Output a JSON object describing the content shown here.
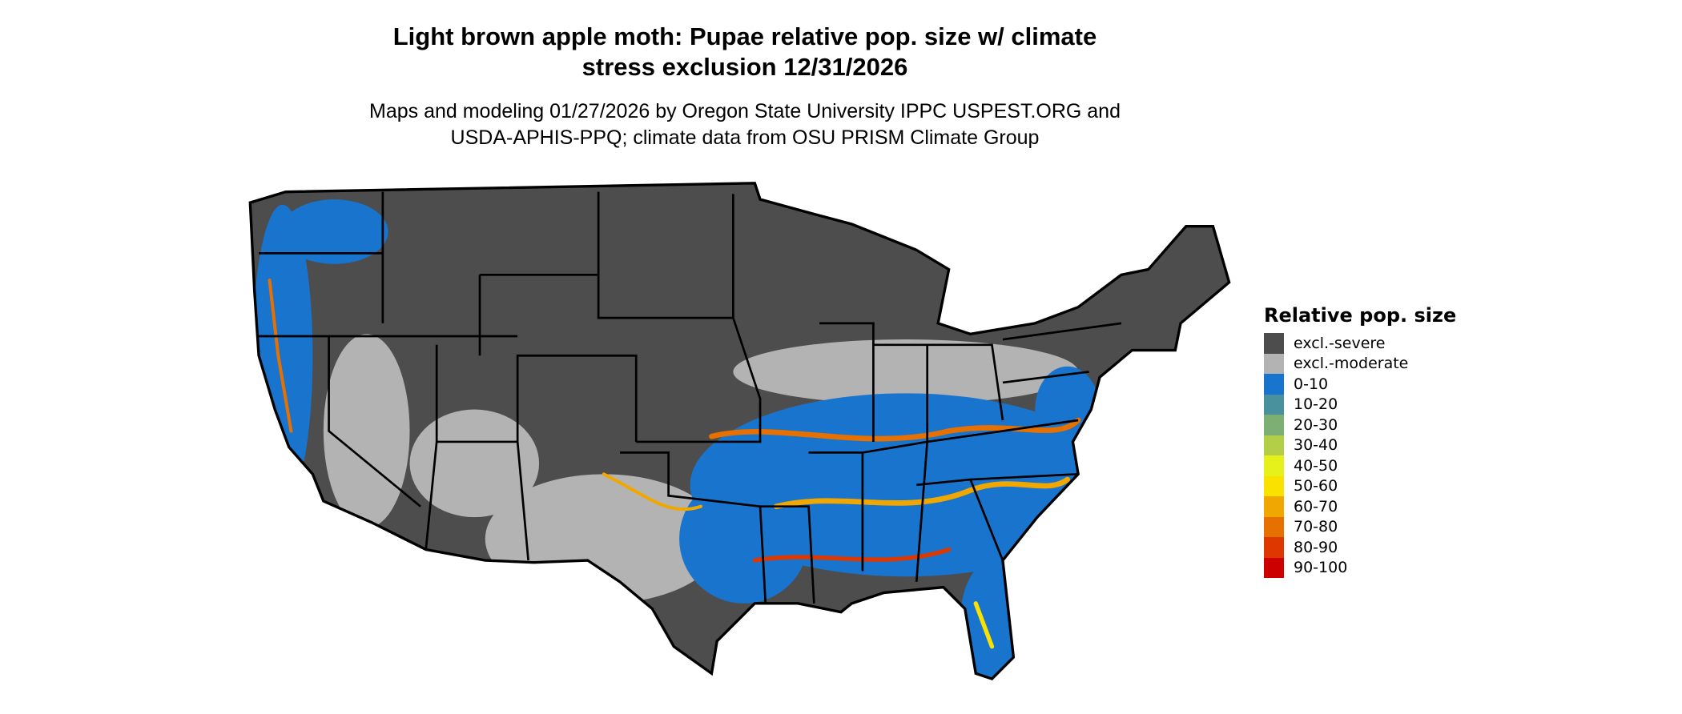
{
  "title": {
    "line1": "Light brown apple moth: Pupae relative pop. size w/ climate",
    "line2": "stress exclusion 12/31/2026"
  },
  "subtitle": {
    "line1": "Maps and modeling 01/27/2026 by Oregon State University IPPC USPEST.ORG and",
    "line2": "USDA-APHIS-PPQ; climate data from OSU PRISM Climate Group"
  },
  "map": {
    "region": "Contiguous United States",
    "colors": {
      "severe": "#4d4d4d",
      "moderate": "#b3b3b3",
      "low": "#1874cd",
      "border": "#000000"
    }
  },
  "legend": {
    "title": "Relative pop. size",
    "items": [
      {
        "label": "excl.-severe",
        "color": "#4d4d4d"
      },
      {
        "label": "excl.-moderate",
        "color": "#b3b3b3"
      },
      {
        "label": "0-10",
        "color": "#1874cd"
      },
      {
        "label": "10-20",
        "color": "#4a919e"
      },
      {
        "label": "20-30",
        "color": "#7daf75"
      },
      {
        "label": "30-40",
        "color": "#b3cf47"
      },
      {
        "label": "40-50",
        "color": "#e6f01a"
      },
      {
        "label": "50-60",
        "color": "#f9e100"
      },
      {
        "label": "60-70",
        "color": "#f0a800"
      },
      {
        "label": "70-80",
        "color": "#e67000"
      },
      {
        "label": "80-90",
        "color": "#dc3800"
      },
      {
        "label": "90-100",
        "color": "#cd0000"
      }
    ]
  }
}
